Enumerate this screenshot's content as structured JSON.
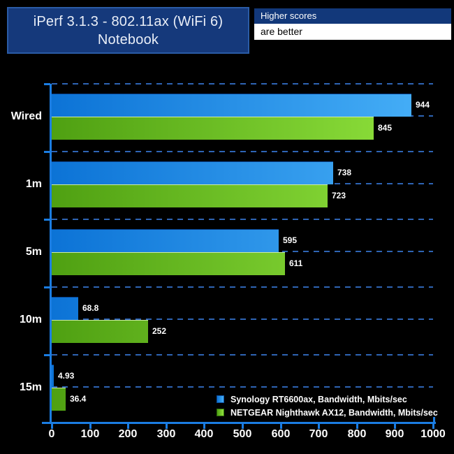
{
  "title": {
    "line1": "iPerf 3.1.3 - 802.11ax (WiFi 6)",
    "line2": "Notebook"
  },
  "note": {
    "header": "Higher scores",
    "body": "are better"
  },
  "chart_data": {
    "type": "bar",
    "orientation": "horizontal",
    "title": "iPerf 3.1.3 - 802.11ax (WiFi 6) Notebook",
    "categories": [
      "Wired",
      "1m",
      "5m",
      "10m",
      "15m"
    ],
    "series": [
      {
        "name": "Synology RT6600ax, Bandwidth, Mbits/sec",
        "values": [
          944,
          738,
          595,
          68.8,
          4.93
        ],
        "color_start": "#0c73d6",
        "color_end": "#47b0f8",
        "swatch_border": "#0d4f9e"
      },
      {
        "name": "NETGEAR Nighthawk AX12, Bandwidth, Mbits/sec",
        "values": [
          845,
          723,
          611,
          252,
          36.4
        ],
        "color_start": "#4fa012",
        "color_end": "#92e43e",
        "swatch_border": "#2f6b0c"
      }
    ],
    "xlim": [
      0,
      1000
    ],
    "x_ticks": [
      "0",
      "100",
      "200",
      "300",
      "400",
      "500",
      "600",
      "700",
      "800",
      "900",
      "1000"
    ],
    "xlabel": "",
    "ylabel": "",
    "grid": "dashed-horizontal-category-separators",
    "legend_position": "bottom-right",
    "value_labels_shown": true
  },
  "colors": {
    "background": "#000000",
    "axis": "#1b7de2",
    "gridline": "#2e64b4",
    "title_box_bg": "#15397b",
    "title_box_border": "#2a5ba6",
    "note_header_bg": "#12387a",
    "note_body_bg": "#ffffff",
    "text": "#ffffff"
  }
}
